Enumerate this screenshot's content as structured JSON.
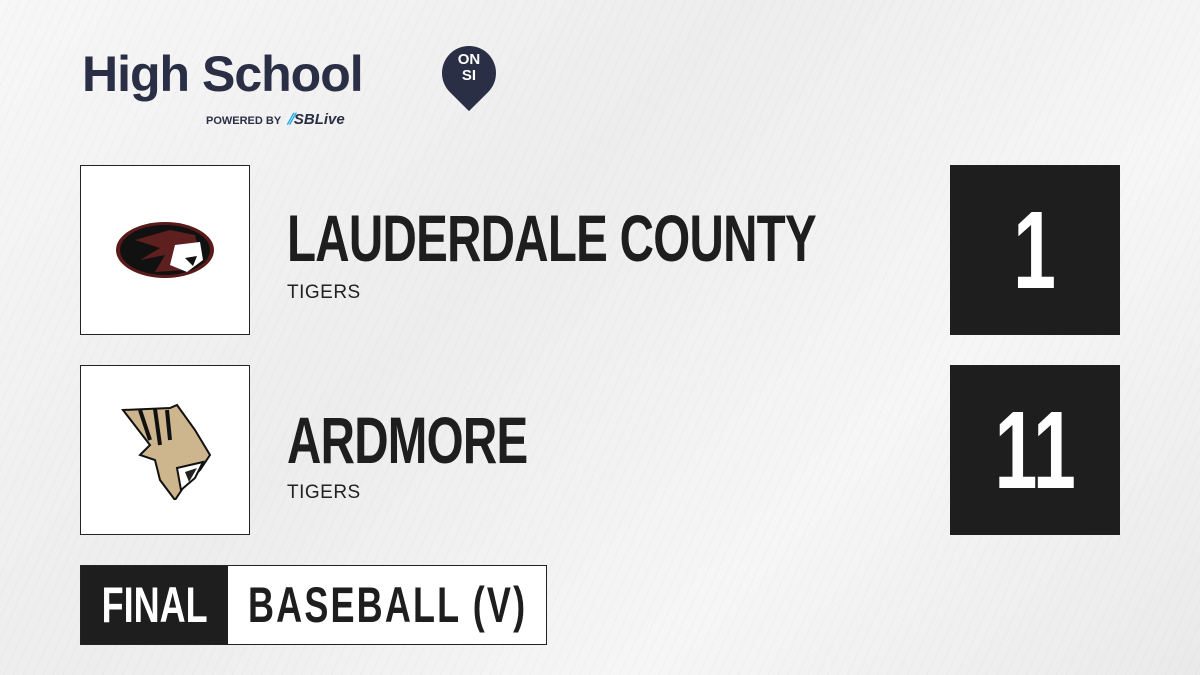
{
  "brand": {
    "title": "High School",
    "badge_top": "ON",
    "badge_bottom": "SI",
    "powered_by": "POWERED BY",
    "partner": "SBLive",
    "partner_accent": "#1fa9e6"
  },
  "teams": [
    {
      "name": "LAUDERDALE COUNTY",
      "mascot": "TIGERS",
      "score": "1",
      "logo": "tiger-oval-logo"
    },
    {
      "name": "ARDMORE",
      "mascot": "TIGERS",
      "score": "11",
      "logo": "wildcat-head-logo"
    }
  ],
  "game": {
    "status": "FINAL",
    "sport": "BASEBALL (V)"
  },
  "colors": {
    "dark": "#1e1e1e",
    "brand": "#2b2f45"
  }
}
